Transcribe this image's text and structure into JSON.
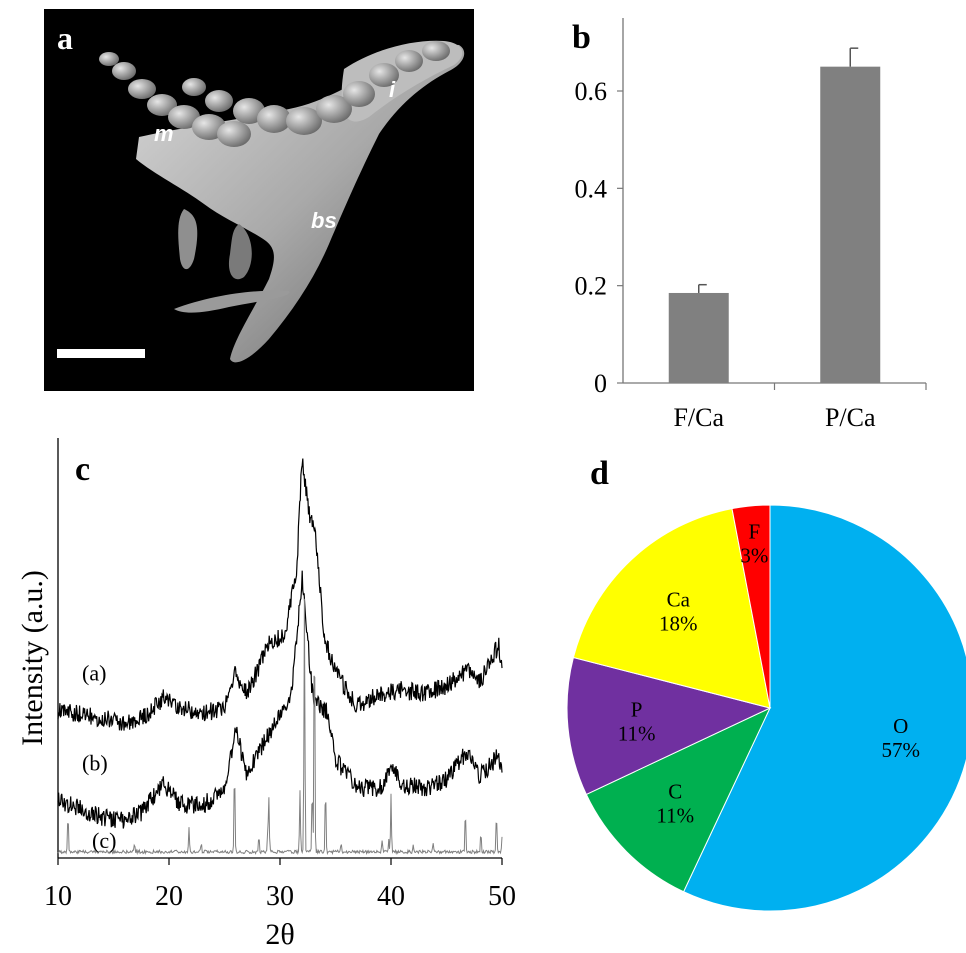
{
  "panels": {
    "a": {
      "letter": "a",
      "labels": {
        "m": "m",
        "i": "i",
        "bs": "bs"
      }
    },
    "b": {
      "letter": "b"
    },
    "c": {
      "letter": "c"
    },
    "d": {
      "letter": "d"
    }
  },
  "chart_data": [
    {
      "id": "b",
      "type": "bar",
      "categories": [
        "F/Ca",
        "P/Ca"
      ],
      "values": [
        0.185,
        0.65
      ],
      "errors": [
        0.017,
        0.038
      ],
      "ylim": [
        0,
        0.75
      ],
      "yticks": [
        0,
        0.2,
        0.4,
        0.6
      ],
      "ytick_labels": [
        "0",
        "0.2",
        "0.4",
        "0.6"
      ],
      "bar_color": "#808080",
      "grid": false,
      "title": "",
      "xlabel": "",
      "ylabel": ""
    },
    {
      "id": "c",
      "type": "line",
      "xlabel": "2θ",
      "ylabel": "Intensity (a.u.)",
      "xlim": [
        10,
        50
      ],
      "xticks": [
        10,
        20,
        30,
        40,
        50
      ],
      "xtick_labels": [
        "10",
        "20",
        "30",
        "40",
        "50"
      ],
      "series": [
        {
          "name": "(a)",
          "color": "#000000",
          "x": [
            10,
            12,
            14,
            16,
            18,
            19.5,
            21,
            23,
            25,
            25.9,
            27,
            29,
            30.5,
            31.5,
            32.0,
            32.6,
            33.2,
            34,
            35,
            37,
            39,
            41,
            43,
            45,
            47,
            48,
            49.7,
            50
          ],
          "y": [
            0.36,
            0.35,
            0.34,
            0.33,
            0.35,
            0.39,
            0.37,
            0.35,
            0.37,
            0.45,
            0.4,
            0.52,
            0.55,
            0.7,
            0.98,
            0.84,
            0.78,
            0.54,
            0.45,
            0.37,
            0.4,
            0.41,
            0.4,
            0.42,
            0.46,
            0.43,
            0.52,
            0.47
          ]
        },
        {
          "name": "(b)",
          "color": "#000000",
          "x": [
            10,
            12,
            14,
            16,
            17.5,
            19.5,
            21,
            23,
            25,
            26.0,
            27,
            28.5,
            30,
            31,
            32.0,
            33,
            34.2,
            35,
            37,
            39,
            40.2,
            41,
            43,
            45,
            46.8,
            48,
            49.7,
            50
          ],
          "y": [
            0.14,
            0.12,
            0.1,
            0.09,
            0.11,
            0.18,
            0.13,
            0.13,
            0.16,
            0.32,
            0.2,
            0.28,
            0.35,
            0.4,
            0.68,
            0.38,
            0.36,
            0.24,
            0.17,
            0.17,
            0.22,
            0.18,
            0.17,
            0.19,
            0.26,
            0.2,
            0.25,
            0.2
          ]
        },
        {
          "name": "(c)",
          "color": "#808080",
          "peaks": [
            {
              "x": 10.9,
              "h": 0.09
            },
            {
              "x": 16.9,
              "h": 0.02
            },
            {
              "x": 21.8,
              "h": 0.06
            },
            {
              "x": 22.9,
              "h": 0.02
            },
            {
              "x": 25.9,
              "h": 0.21
            },
            {
              "x": 28.1,
              "h": 0.04
            },
            {
              "x": 28.9,
              "h": 0.05
            },
            {
              "x": 29.0,
              "h": 0.13
            },
            {
              "x": 31.8,
              "h": 0.15
            },
            {
              "x": 32.2,
              "h": 0.62
            },
            {
              "x": 32.9,
              "h": 0.16
            },
            {
              "x": 33.1,
              "h": 0.58
            },
            {
              "x": 34.1,
              "h": 0.16
            },
            {
              "x": 35.5,
              "h": 0.02
            },
            {
              "x": 39.2,
              "h": 0.03
            },
            {
              "x": 39.8,
              "h": 0.03
            },
            {
              "x": 40.0,
              "h": 0.14
            },
            {
              "x": 42.0,
              "h": 0.02
            },
            {
              "x": 43.8,
              "h": 0.02
            },
            {
              "x": 46.7,
              "h": 0.1
            },
            {
              "x": 48.1,
              "h": 0.05
            },
            {
              "x": 49.5,
              "h": 0.09
            },
            {
              "x": 50.0,
              "h": 0.04
            }
          ]
        }
      ],
      "grid": false
    },
    {
      "id": "d",
      "type": "pie",
      "slices": [
        {
          "label": "O",
          "value": 57,
          "pct": "57%",
          "color": "#00B0F0"
        },
        {
          "label": "C",
          "value": 11,
          "pct": "11%",
          "color": "#00B050"
        },
        {
          "label": "P",
          "value": 11,
          "pct": "11%",
          "color": "#7030A0"
        },
        {
          "label": "Ca",
          "value": 18,
          "pct": "18%",
          "color": "#FFFF00"
        },
        {
          "label": "F",
          "value": 3,
          "pct": "3%",
          "color": "#FF0000"
        }
      ],
      "start_angle_deg": 0,
      "direction": "clockwise"
    }
  ]
}
